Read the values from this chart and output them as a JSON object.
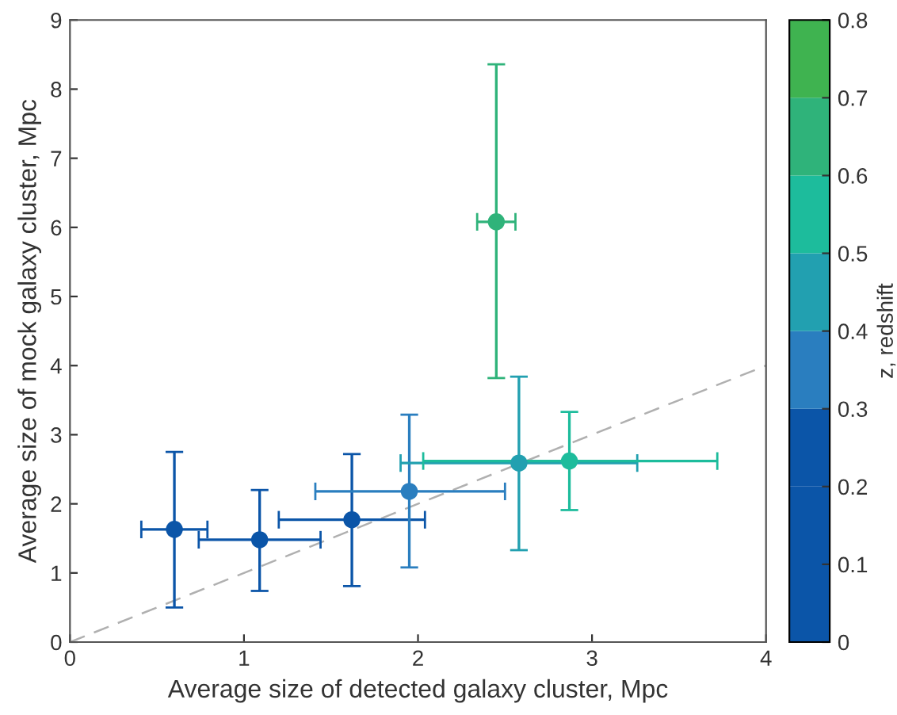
{
  "chart_data": {
    "type": "scatter",
    "xlabel": "Average size of detected galaxy cluster, Mpc",
    "ylabel": "Average size of mock galaxy cluster, Mpc",
    "clabel": "z, redshift",
    "xlim": [
      0,
      4
    ],
    "xticks": [
      0,
      1,
      2,
      3,
      4
    ],
    "ylim": [
      0,
      9
    ],
    "yticks": [
      0,
      1,
      2,
      3,
      4,
      5,
      6,
      7,
      8,
      9
    ],
    "clim": [
      0,
      0.8
    ],
    "cticks": [
      0,
      0.1,
      0.2,
      0.3,
      0.4,
      0.5,
      0.6,
      0.7,
      0.8
    ],
    "grid": false,
    "legend": false,
    "series": [
      {
        "marker": "circle",
        "x": [
          0.6,
          1.09,
          1.62,
          1.95,
          2.58,
          2.87,
          2.45
        ],
        "values": [
          1.63,
          1.48,
          1.77,
          2.18,
          2.59,
          2.62,
          6.08
        ],
        "colors": [
          "#0b55a8",
          "#0b55a8",
          "#0b55a8",
          "#2a7ebf",
          "#22a0b0",
          "#1dbc9c",
          "#2fb37a"
        ],
        "xerrors": [
          [
            0.41,
            0.79
          ],
          [
            0.74,
            1.44
          ],
          [
            1.2,
            2.04
          ],
          [
            1.41,
            2.5
          ],
          [
            1.9,
            3.26
          ],
          [
            2.03,
            3.72
          ],
          [
            2.34,
            2.56
          ]
        ],
        "errors": [
          [
            0.5,
            2.75
          ],
          [
            0.74,
            2.2
          ],
          [
            0.81,
            2.72
          ],
          [
            1.08,
            3.29
          ],
          [
            1.33,
            3.84
          ],
          [
            1.91,
            3.33
          ],
          [
            3.82,
            8.36
          ]
        ]
      },
      {
        "type": "line",
        "x": [
          0,
          4
        ],
        "values": [
          0,
          4
        ],
        "color": "#b0b0b0",
        "line_style": "dashed"
      }
    ]
  }
}
